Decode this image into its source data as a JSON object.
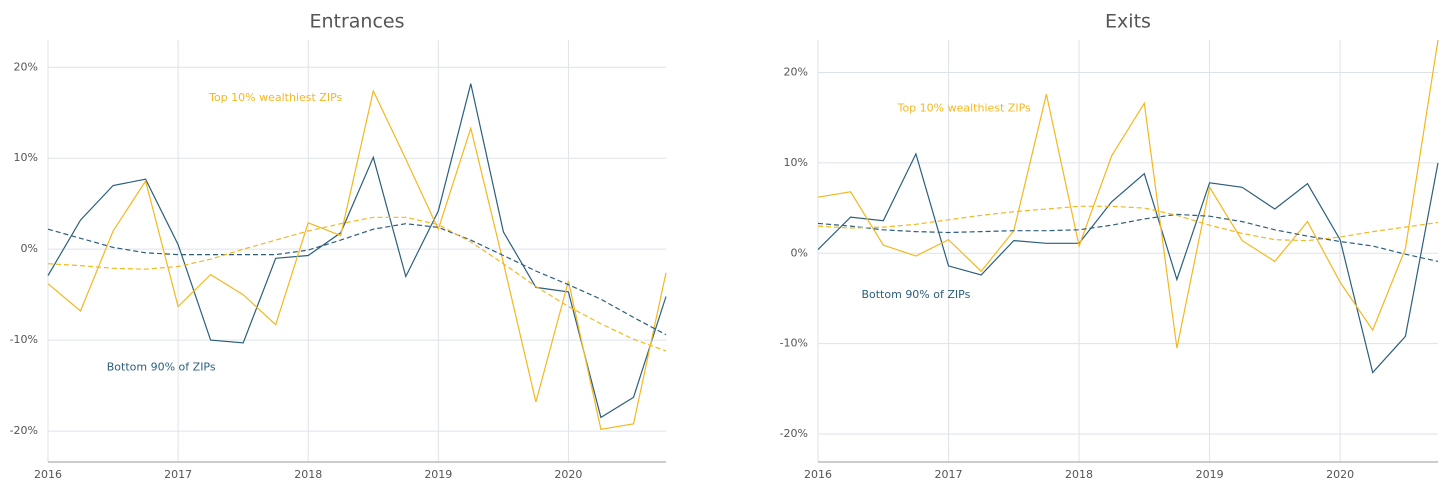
{
  "chart_data": [
    {
      "type": "line",
      "title": "Entrances",
      "x": [
        2016,
        2016.25,
        2016.5,
        2016.75,
        2017,
        2017.25,
        2017.5,
        2017.75,
        2018,
        2018.25,
        2018.5,
        2018.75,
        2019,
        2019.25,
        2019.5,
        2019.75,
        2020,
        2020.25,
        2020.5,
        2020.75
      ],
      "xlim": [
        2016,
        2020.75
      ],
      "xticks": [
        2016,
        2017,
        2018,
        2019,
        2020
      ],
      "ylim": [
        -23.4,
        23
      ],
      "yticks": [
        {
          "value": -20,
          "label": "-20%"
        },
        {
          "value": -10,
          "label": "-10%"
        },
        {
          "value": 0,
          "label": "0%"
        },
        {
          "value": 10,
          "label": "10%"
        },
        {
          "value": 20,
          "label": "20%"
        }
      ],
      "grid": true,
      "series": [
        {
          "color": "#2c5f7c",
          "dashed": false,
          "values": [
            -2.9,
            3.2,
            7.0,
            7.7,
            0.5,
            -10.0,
            -10.3,
            -1.0,
            -0.7,
            1.8,
            10.1,
            -3.0,
            4.2,
            18.2,
            1.9,
            -4.2,
            -4.7,
            -18.5,
            -16.3,
            -5.2
          ]
        },
        {
          "color": "#f5b71f",
          "dashed": false,
          "values": [
            -3.8,
            -6.8,
            2.0,
            7.5,
            -6.3,
            -2.8,
            -5.0,
            -8.3,
            2.9,
            1.5,
            17.4,
            9.9,
            2.2,
            13.3,
            -1.5,
            -16.8,
            -3.5,
            -19.8,
            -19.2,
            -2.6
          ]
        },
        {
          "color": "#2c5f7c",
          "dashed": true,
          "values": [
            2.2,
            1.2,
            0.2,
            -0.4,
            -0.6,
            -0.6,
            -0.6,
            -0.6,
            -0.1,
            1.0,
            2.2,
            2.8,
            2.4,
            1.0,
            -0.7,
            -2.4,
            -3.9,
            -5.5,
            -7.5,
            -9.4
          ]
        },
        {
          "color": "#f5b71f",
          "dashed": true,
          "values": [
            -1.6,
            -1.8,
            -2.1,
            -2.2,
            -1.9,
            -1.1,
            0.0,
            1.0,
            2.0,
            2.8,
            3.5,
            3.5,
            2.7,
            0.8,
            -1.6,
            -4.1,
            -6.3,
            -8.2,
            -9.9,
            -11.2
          ]
        }
      ],
      "annotations": [
        {
          "text": "Top 10% wealthiest ZIPs",
          "color": "#f5b71f",
          "x": 2017.75,
          "y": 16.6
        },
        {
          "text": "Bottom 90% of ZIPs",
          "color": "#2c5f7c",
          "x": 2016.87,
          "y": -13.0
        }
      ]
    },
    {
      "type": "line",
      "title": "Exits",
      "x": [
        2016,
        2016.25,
        2016.5,
        2016.75,
        2017,
        2017.25,
        2017.5,
        2017.75,
        2018,
        2018.25,
        2018.5,
        2018.75,
        2019,
        2019.25,
        2019.5,
        2019.75,
        2020,
        2020.25,
        2020.5,
        2020.75
      ],
      "xlim": [
        2016,
        2020.75
      ],
      "xticks": [
        2016,
        2017,
        2018,
        2019,
        2020
      ],
      "ylim": [
        -23.1,
        23.6
      ],
      "yticks": [
        {
          "value": -20,
          "label": "-20%"
        },
        {
          "value": -10,
          "label": "-10%"
        },
        {
          "value": 0,
          "label": "0%"
        },
        {
          "value": 10,
          "label": "10%"
        },
        {
          "value": 20,
          "label": "20%"
        }
      ],
      "grid": true,
      "series": [
        {
          "color": "#2c5f7c",
          "dashed": false,
          "values": [
            0.4,
            4.0,
            3.6,
            11.0,
            -1.4,
            -2.4,
            1.4,
            1.1,
            1.1,
            5.7,
            8.8,
            -2.9,
            7.8,
            7.3,
            4.9,
            7.7,
            1.5,
            -13.2,
            -9.2,
            10.0
          ]
        },
        {
          "color": "#f5b71f",
          "dashed": false,
          "values": [
            6.2,
            6.8,
            0.9,
            -0.3,
            1.5,
            -2.0,
            2.5,
            17.6,
            0.8,
            10.8,
            16.6,
            -10.5,
            7.3,
            1.4,
            -0.9,
            3.5,
            -3.2,
            -8.5,
            0.5,
            23.6
          ]
        },
        {
          "color": "#2c5f7c",
          "dashed": true,
          "values": [
            3.3,
            3.0,
            2.6,
            2.4,
            2.3,
            2.4,
            2.5,
            2.5,
            2.6,
            3.1,
            3.8,
            4.3,
            4.1,
            3.5,
            2.6,
            1.9,
            1.3,
            0.8,
            -0.1,
            -0.9
          ]
        },
        {
          "color": "#f5b71f",
          "dashed": true,
          "values": [
            3.0,
            2.8,
            2.9,
            3.2,
            3.7,
            4.2,
            4.6,
            4.9,
            5.2,
            5.2,
            5.0,
            4.2,
            3.1,
            2.2,
            1.5,
            1.4,
            1.8,
            2.4,
            2.9,
            3.4
          ]
        }
      ],
      "annotations": [
        {
          "text": "Top 10% wealthiest ZIPs",
          "color": "#f5b71f",
          "x": 2017.12,
          "y": 16.0
        },
        {
          "text": "Bottom 90% of ZIPs",
          "color": "#2c5f7c",
          "x": 2016.75,
          "y": -4.6
        }
      ]
    }
  ]
}
